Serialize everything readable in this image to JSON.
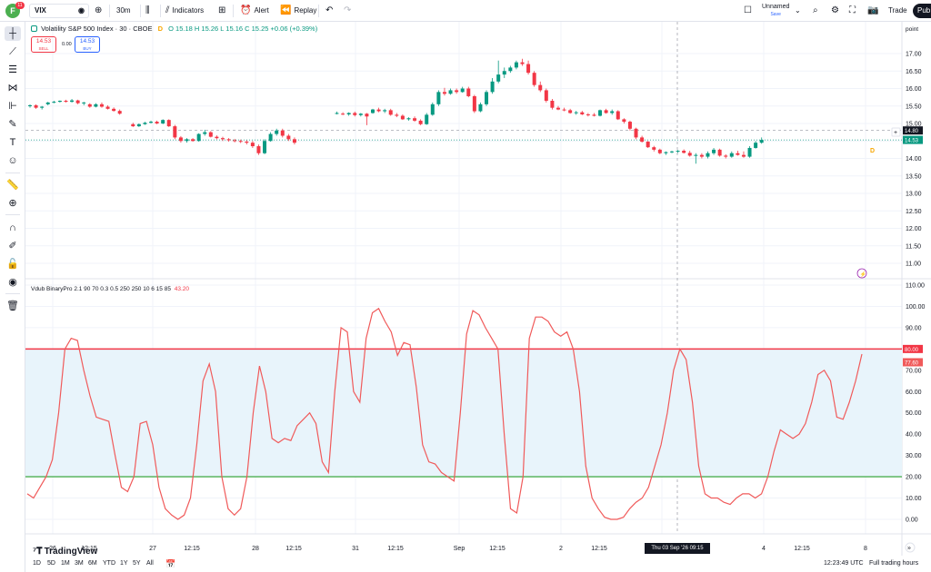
{
  "topbar": {
    "avatar_letter": "F",
    "notification_count": "11",
    "symbol": "VIX",
    "interval": "30m",
    "indicators_label": "Indicators",
    "alert_label": "Alert",
    "replay_label": "Replay",
    "layout_name": "Unnamed",
    "layout_status": "Save",
    "trade_label": "Trade",
    "publish_label": "Pub"
  },
  "legend": {
    "title": "Volatility S&P 500 Index · 30 · CBOE",
    "open": "O 15.18",
    "high": "H 15.26",
    "low": "L 15.16",
    "close": "C 15.25",
    "change": "+0.06 (+0.39%)",
    "flag": "D"
  },
  "trade": {
    "sell_price": "14.53",
    "sell_label": "SELL",
    "spread": "0.00",
    "buy_price": "14.53",
    "buy_label": "BUY"
  },
  "indicator": {
    "name": "Vdub BinaryPro 2.1 90 70 0.3 0.5 250 250 10 6 15 85",
    "value": "43.20",
    "upper_level": 80,
    "lower_level": 20,
    "line_color": "#f05a5a",
    "upper_color": "#f23645",
    "lower_color": "#4caf50",
    "band_fill": "#e8f4fb",
    "last_value_label": "77.60"
  },
  "price_scale": {
    "unit": "point",
    "ticks": [
      "17.00",
      "16.50",
      "16.00",
      "15.50",
      "15.00",
      "14.50",
      "14.00",
      "13.50",
      "13.00",
      "12.50",
      "12.00",
      "11.50",
      "11.00"
    ],
    "current_price": "14.53",
    "crosshair_price": "14.80",
    "high_value": "15.00",
    "up_color": "#089981",
    "down_color": "#f23645"
  },
  "indicator_scale": {
    "ticks": [
      "110.00",
      "100.00",
      "90.00",
      "80.00",
      "70.00",
      "60.00",
      "50.00",
      "40.00",
      "30.00",
      "20.00",
      "10.00",
      "0.00"
    ],
    "upper_label": "80.00"
  },
  "time_axis": {
    "labels": [
      "26",
      "12:15",
      "27",
      "12:15",
      "28",
      "12:15",
      "31",
      "12:15",
      "Sep",
      "12:15",
      "2",
      "12:15",
      "Thu 03 Sep '26  09:15",
      "4",
      "12:15",
      "8"
    ],
    "crosshair_label": "Thu 03 Sep '26  09:15"
  },
  "chart_data": {
    "type": "line",
    "series": [
      {
        "name": "Vdub BinaryPro 2.1",
        "values": [
          12,
          10,
          15,
          20,
          28,
          50,
          80,
          85,
          84,
          70,
          58,
          48,
          47,
          46,
          30,
          15,
          13,
          20,
          45,
          46,
          35,
          15,
          5,
          2,
          0,
          2,
          10,
          35,
          65,
          73,
          60,
          20,
          5,
          2,
          5,
          20,
          50,
          72,
          60,
          38,
          36,
          38,
          37,
          44,
          47,
          50,
          45,
          27,
          22,
          60,
          90,
          88,
          60,
          55,
          85,
          97,
          99,
          93,
          88,
          77,
          83,
          82,
          62,
          35,
          27,
          26,
          22,
          20,
          18,
          50,
          87,
          98,
          96,
          90,
          85,
          80,
          40,
          5,
          3,
          20,
          85,
          95,
          95,
          93,
          88,
          86,
          88,
          80,
          60,
          25,
          10,
          5,
          1,
          0,
          0,
          1,
          5,
          8,
          10,
          15,
          25,
          35,
          50,
          70,
          80,
          75,
          55,
          25,
          12,
          10,
          10,
          8,
          7,
          10,
          12,
          12,
          10,
          12,
          20,
          32,
          42,
          40,
          38,
          40,
          45,
          55,
          68,
          70,
          65,
          48,
          47,
          55,
          65,
          77.6
        ]
      }
    ],
    "xlabel": "",
    "ylabel": "",
    "ylim": [
      0,
      110
    ]
  },
  "candles": [
    {
      "o": 15.5,
      "h": 15.55,
      "l": 15.45,
      "c": 15.52
    },
    {
      "o": 15.52,
      "h": 15.55,
      "l": 15.42,
      "c": 15.45
    },
    {
      "o": 15.45,
      "h": 15.5,
      "l": 15.4,
      "c": 15.48
    },
    {
      "o": 15.55,
      "h": 15.62,
      "l": 15.52,
      "c": 15.6
    },
    {
      "o": 15.6,
      "h": 15.65,
      "l": 15.58,
      "c": 15.62
    },
    {
      "o": 15.62,
      "h": 15.66,
      "l": 15.6,
      "c": 15.65
    },
    {
      "o": 15.65,
      "h": 15.68,
      "l": 15.6,
      "c": 15.62
    },
    {
      "o": 15.62,
      "h": 15.7,
      "l": 15.6,
      "c": 15.66
    },
    {
      "o": 15.66,
      "h": 15.68,
      "l": 15.55,
      "c": 15.58
    },
    {
      "o": 15.58,
      "h": 15.62,
      "l": 15.52,
      "c": 15.6
    },
    {
      "o": 15.55,
      "h": 15.58,
      "l": 15.45,
      "c": 15.48
    },
    {
      "o": 15.48,
      "h": 15.58,
      "l": 15.46,
      "c": 15.55
    },
    {
      "o": 15.55,
      "h": 15.6,
      "l": 15.45,
      "c": 15.48
    },
    {
      "o": 15.48,
      "h": 15.52,
      "l": 15.4,
      "c": 15.42
    },
    {
      "o": 15.42,
      "h": 15.46,
      "l": 15.34,
      "c": 15.36
    },
    {
      "o": 15.36,
      "h": 15.4,
      "l": 15.25,
      "c": 15.28
    },
    {
      "o": 14.98,
      "h": 15.02,
      "l": 14.9,
      "c": 14.92
    },
    {
      "o": 14.92,
      "h": 15.0,
      "l": 14.9,
      "c": 14.98
    },
    {
      "o": 14.98,
      "h": 15.05,
      "l": 14.96,
      "c": 15.02
    },
    {
      "o": 15.02,
      "h": 15.08,
      "l": 15.0,
      "c": 15.05
    },
    {
      "o": 15.05,
      "h": 15.08,
      "l": 14.98,
      "c": 15.0
    },
    {
      "o": 15.0,
      "h": 15.12,
      "l": 14.98,
      "c": 15.1
    },
    {
      "o": 15.1,
      "h": 15.12,
      "l": 14.9,
      "c": 14.92
    },
    {
      "o": 14.92,
      "h": 14.96,
      "l": 14.55,
      "c": 14.6
    },
    {
      "o": 14.6,
      "h": 14.64,
      "l": 14.45,
      "c": 14.5
    },
    {
      "o": 14.5,
      "h": 14.58,
      "l": 14.45,
      "c": 14.55
    },
    {
      "o": 14.55,
      "h": 14.58,
      "l": 14.48,
      "c": 14.5
    },
    {
      "o": 14.5,
      "h": 14.72,
      "l": 14.48,
      "c": 14.7
    },
    {
      "o": 14.7,
      "h": 14.82,
      "l": 14.65,
      "c": 14.75
    },
    {
      "o": 14.75,
      "h": 14.78,
      "l": 14.6,
      "c": 14.62
    },
    {
      "o": 14.62,
      "h": 14.66,
      "l": 14.55,
      "c": 14.58
    },
    {
      "o": 14.58,
      "h": 14.62,
      "l": 14.5,
      "c": 14.55
    },
    {
      "o": 14.55,
      "h": 14.58,
      "l": 14.48,
      "c": 14.52
    },
    {
      "o": 14.52,
      "h": 14.56,
      "l": 14.46,
      "c": 14.5
    },
    {
      "o": 14.5,
      "h": 14.54,
      "l": 14.44,
      "c": 14.48
    },
    {
      "o": 14.48,
      "h": 14.52,
      "l": 14.4,
      "c": 14.45
    },
    {
      "o": 14.45,
      "h": 14.5,
      "l": 14.3,
      "c": 14.35
    },
    {
      "o": 14.35,
      "h": 14.4,
      "l": 14.1,
      "c": 14.15
    },
    {
      "o": 14.15,
      "h": 14.55,
      "l": 14.12,
      "c": 14.5
    },
    {
      "o": 14.5,
      "h": 14.75,
      "l": 14.48,
      "c": 14.7
    },
    {
      "o": 14.7,
      "h": 14.85,
      "l": 14.65,
      "c": 14.8
    },
    {
      "o": 14.8,
      "h": 14.85,
      "l": 14.6,
      "c": 14.65
    },
    {
      "o": 14.65,
      "h": 14.7,
      "l": 14.5,
      "c": 14.55
    },
    {
      "o": 14.55,
      "h": 14.6,
      "l": 14.4,
      "c": 14.45
    },
    {
      "o": 15.3,
      "h": 15.34,
      "l": 15.26,
      "c": 15.3
    },
    {
      "o": 15.28,
      "h": 15.32,
      "l": 15.24,
      "c": 15.26
    },
    {
      "o": 15.26,
      "h": 15.32,
      "l": 15.22,
      "c": 15.3
    },
    {
      "o": 15.3,
      "h": 15.34,
      "l": 15.2,
      "c": 15.24
    },
    {
      "o": 15.24,
      "h": 15.3,
      "l": 15.2,
      "c": 15.28
    },
    {
      "o": 15.28,
      "h": 15.3,
      "l": 14.95,
      "c": 15.2
    },
    {
      "o": 15.3,
      "h": 15.42,
      "l": 15.28,
      "c": 15.4
    },
    {
      "o": 15.4,
      "h": 15.45,
      "l": 15.32,
      "c": 15.35
    },
    {
      "o": 15.35,
      "h": 15.42,
      "l": 15.3,
      "c": 15.38
    },
    {
      "o": 15.38,
      "h": 15.42,
      "l": 15.22,
      "c": 15.25
    },
    {
      "o": 15.25,
      "h": 15.3,
      "l": 15.18,
      "c": 15.22
    },
    {
      "o": 15.22,
      "h": 15.26,
      "l": 15.1,
      "c": 15.12
    },
    {
      "o": 15.12,
      "h": 15.18,
      "l": 15.08,
      "c": 15.15
    },
    {
      "o": 15.15,
      "h": 15.2,
      "l": 15.05,
      "c": 15.08
    },
    {
      "o": 15.08,
      "h": 15.12,
      "l": 14.95,
      "c": 14.98
    },
    {
      "o": 14.98,
      "h": 15.3,
      "l": 14.96,
      "c": 15.25
    },
    {
      "o": 15.25,
      "h": 15.6,
      "l": 15.22,
      "c": 15.55
    },
    {
      "o": 15.55,
      "h": 15.95,
      "l": 15.5,
      "c": 15.9
    },
    {
      "o": 15.9,
      "h": 16.02,
      "l": 15.8,
      "c": 15.85
    },
    {
      "o": 15.85,
      "h": 16.0,
      "l": 15.82,
      "c": 15.95
    },
    {
      "o": 15.95,
      "h": 16.0,
      "l": 15.85,
      "c": 15.9
    },
    {
      "o": 15.9,
      "h": 16.05,
      "l": 15.88,
      "c": 16.0
    },
    {
      "o": 16.0,
      "h": 16.05,
      "l": 15.75,
      "c": 15.78
    },
    {
      "o": 15.78,
      "h": 15.82,
      "l": 15.3,
      "c": 15.35
    },
    {
      "o": 15.35,
      "h": 15.6,
      "l": 15.32,
      "c": 15.55
    },
    {
      "o": 15.55,
      "h": 15.95,
      "l": 15.5,
      "c": 15.9
    },
    {
      "o": 15.9,
      "h": 16.3,
      "l": 15.85,
      "c": 16.2
    },
    {
      "o": 16.2,
      "h": 16.8,
      "l": 16.15,
      "c": 16.4
    },
    {
      "o": 16.4,
      "h": 16.6,
      "l": 16.3,
      "c": 16.5
    },
    {
      "o": 16.5,
      "h": 16.65,
      "l": 16.45,
      "c": 16.6
    },
    {
      "o": 16.6,
      "h": 16.8,
      "l": 16.55,
      "c": 16.75
    },
    {
      "o": 16.75,
      "h": 16.85,
      "l": 16.65,
      "c": 16.7
    },
    {
      "o": 16.7,
      "h": 16.8,
      "l": 16.4,
      "c": 16.45
    },
    {
      "o": 16.45,
      "h": 16.5,
      "l": 16.05,
      "c": 16.1
    },
    {
      "o": 16.1,
      "h": 16.2,
      "l": 15.9,
      "c": 15.95
    },
    {
      "o": 15.95,
      "h": 16.0,
      "l": 15.6,
      "c": 15.65
    },
    {
      "o": 15.65,
      "h": 15.7,
      "l": 15.4,
      "c": 15.45
    },
    {
      "o": 15.45,
      "h": 15.5,
      "l": 15.38,
      "c": 15.4
    },
    {
      "o": 15.4,
      "h": 15.45,
      "l": 15.35,
      "c": 15.38
    },
    {
      "o": 15.38,
      "h": 15.42,
      "l": 15.28,
      "c": 15.3
    },
    {
      "o": 15.3,
      "h": 15.36,
      "l": 15.25,
      "c": 15.32
    },
    {
      "o": 15.32,
      "h": 15.36,
      "l": 15.24,
      "c": 15.26
    },
    {
      "o": 15.26,
      "h": 15.3,
      "l": 15.2,
      "c": 15.25
    },
    {
      "o": 15.25,
      "h": 15.3,
      "l": 15.2,
      "c": 15.22
    },
    {
      "o": 15.22,
      "h": 15.4,
      "l": 15.2,
      "c": 15.38
    },
    {
      "o": 15.38,
      "h": 15.42,
      "l": 15.28,
      "c": 15.3
    },
    {
      "o": 15.3,
      "h": 15.4,
      "l": 15.25,
      "c": 15.35
    },
    {
      "o": 15.35,
      "h": 15.38,
      "l": 15.1,
      "c": 15.12
    },
    {
      "o": 15.12,
      "h": 15.15,
      "l": 15.0,
      "c": 15.05
    },
    {
      "o": 15.05,
      "h": 15.08,
      "l": 14.8,
      "c": 14.85
    },
    {
      "o": 14.85,
      "h": 14.88,
      "l": 14.55,
      "c": 14.6
    },
    {
      "o": 14.6,
      "h": 14.65,
      "l": 14.45,
      "c": 14.48
    },
    {
      "o": 14.48,
      "h": 14.5,
      "l": 14.3,
      "c": 14.32
    },
    {
      "o": 14.32,
      "h": 14.36,
      "l": 14.2,
      "c": 14.25
    },
    {
      "o": 14.25,
      "h": 14.28,
      "l": 14.12,
      "c": 14.15
    },
    {
      "o": 14.15,
      "h": 14.2,
      "l": 14.1,
      "c": 14.18
    },
    {
      "o": 14.18,
      "h": 14.22,
      "l": 14.15,
      "c": 14.2
    },
    {
      "o": 14.2,
      "h": 14.24,
      "l": 14.16,
      "c": 14.22
    },
    {
      "o": 14.22,
      "h": 14.26,
      "l": 14.14,
      "c": 14.16
    },
    {
      "o": 14.16,
      "h": 14.22,
      "l": 14.05,
      "c": 14.08
    },
    {
      "o": 14.08,
      "h": 14.15,
      "l": 13.85,
      "c": 14.1
    },
    {
      "o": 14.1,
      "h": 14.15,
      "l": 14.0,
      "c": 14.05
    },
    {
      "o": 14.05,
      "h": 14.2,
      "l": 14.0,
      "c": 14.15
    },
    {
      "o": 14.15,
      "h": 14.3,
      "l": 14.1,
      "c": 14.25
    },
    {
      "o": 14.25,
      "h": 14.28,
      "l": 14.05,
      "c": 14.08
    },
    {
      "o": 14.08,
      "h": 14.12,
      "l": 14.0,
      "c": 14.05
    },
    {
      "o": 14.05,
      "h": 14.2,
      "l": 14.02,
      "c": 14.15
    },
    {
      "o": 14.15,
      "h": 14.22,
      "l": 14.08,
      "c": 14.1
    },
    {
      "o": 14.1,
      "h": 14.2,
      "l": 14.02,
      "c": 14.05
    },
    {
      "o": 14.05,
      "h": 14.35,
      "l": 14.02,
      "c": 14.3
    },
    {
      "o": 14.3,
      "h": 14.5,
      "l": 14.28,
      "c": 14.45
    },
    {
      "o": 14.45,
      "h": 14.6,
      "l": 14.42,
      "c": 14.53
    }
  ],
  "bottombar": {
    "ranges": [
      "1D",
      "5D",
      "1M",
      "3M",
      "6M",
      "YTD",
      "1Y",
      "5Y",
      "All"
    ],
    "clock": "12:23:49 UTC",
    "session": "Full trading hours"
  },
  "brand": "TradingView",
  "badge_symbol": "⚡"
}
